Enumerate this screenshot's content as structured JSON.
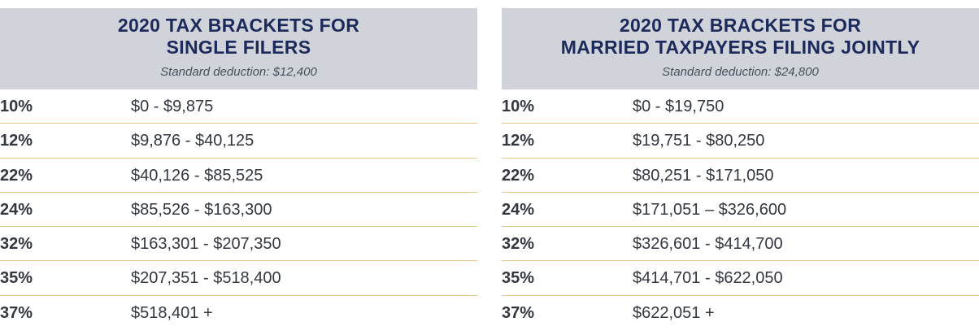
{
  "single": {
    "title_line1": "2020 TAX BRACKETS FOR",
    "title_line2": "SINGLE FILERS",
    "deduction": "Standard deduction: $12,400",
    "rows": [
      {
        "rate": "10%",
        "range": "$0 - $9,875"
      },
      {
        "rate": "12%",
        "range": "$9,876 - $40,125"
      },
      {
        "rate": "22%",
        "range": "$40,126 - $85,525"
      },
      {
        "rate": "24%",
        "range": "$85,526 - $163,300"
      },
      {
        "rate": "32%",
        "range": "$163,301 - $207,350"
      },
      {
        "rate": "35%",
        "range": "$207,351 - $518,400"
      },
      {
        "rate": "37%",
        "range": "$518,401 +"
      }
    ]
  },
  "married": {
    "title_line1": "2020 TAX BRACKETS FOR",
    "title_line2": "MARRIED TAXPAYERS FILING JOINTLY",
    "deduction": "Standard deduction: $24,800",
    "rows": [
      {
        "rate": "10%",
        "range": "$0 - $19,750"
      },
      {
        "rate": "12%",
        "range": "$19,751 - $80,250"
      },
      {
        "rate": "22%",
        "range": "$80,251 - $171,050"
      },
      {
        "rate": "24%",
        "range": "$171,051 – $326,600"
      },
      {
        "rate": "32%",
        "range": "$326,601 - $414,700"
      },
      {
        "rate": "35%",
        "range": "$414,701 - $622,050"
      },
      {
        "rate": "37%",
        "range": "$622,051 +"
      }
    ]
  },
  "colors": {
    "header_bg": "#d0d3d9",
    "title": "#1b2a5a",
    "row_divider": "#e6c98a",
    "text": "#333740"
  }
}
